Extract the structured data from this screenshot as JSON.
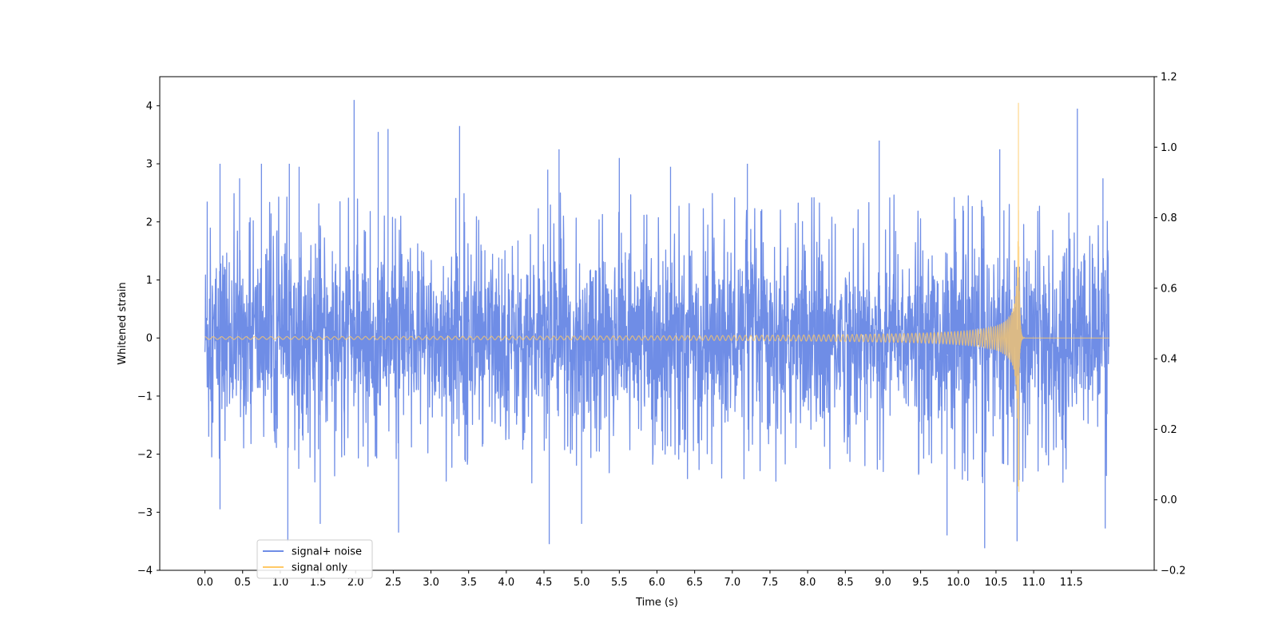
{
  "chart_data": {
    "type": "line",
    "title": "",
    "xlabel": "Time (s)",
    "ylabel": "Whitened strain",
    "xlim": [
      -0.6,
      12.6
    ],
    "ylim": [
      -4,
      4.5
    ],
    "y2lim": [
      -0.2,
      1.2
    ],
    "x_ticks": [
      0.0,
      0.5,
      1.0,
      1.5,
      2.0,
      2.5,
      3.0,
      3.5,
      4.0,
      4.5,
      5.0,
      5.5,
      6.0,
      6.5,
      7.0,
      7.5,
      8.0,
      8.5,
      9.0,
      9.5,
      10.0,
      10.5,
      11.0,
      11.5
    ],
    "x_tick_labels": [
      "0.0",
      "0.5",
      "1.0",
      "1.5",
      "2.0",
      "2.5",
      "3.0",
      "3.5",
      "4.0",
      "4.5",
      "5.0",
      "5.5",
      "6.0",
      "6.5",
      "7.0",
      "7.5",
      "8.0",
      "8.5",
      "9.0",
      "9.5",
      "10.0",
      "10.5",
      "11.0",
      "11.5"
    ],
    "y_ticks": [
      -4,
      -3,
      -2,
      -1,
      0,
      1,
      2,
      3,
      4
    ],
    "y_tick_labels": [
      "−4",
      "−3",
      "−2",
      "−1",
      "0",
      "1",
      "2",
      "3",
      "4"
    ],
    "y2_ticks": [
      -0.2,
      0.0,
      0.2,
      0.4,
      0.6,
      0.8,
      1.0,
      1.2
    ],
    "y2_tick_labels": [
      "−0.2",
      "0.0",
      "0.2",
      "0.4",
      "0.6",
      "0.8",
      "1.0",
      "1.2"
    ],
    "legend_position": "lower-left",
    "series": [
      {
        "name": "signal+ noise",
        "color": "#6f8de6",
        "axis": "left",
        "x_range": [
          0.0,
          12.0
        ],
        "envelope_typical": [
          -2.0,
          2.2
        ],
        "peaks": [
          [
            0.03,
            2.35
          ],
          [
            0.2,
            3.0
          ],
          [
            0.46,
            2.75
          ],
          [
            0.75,
            3.0
          ],
          [
            1.12,
            3.0
          ],
          [
            1.25,
            2.95
          ],
          [
            1.98,
            4.1
          ],
          [
            2.3,
            3.55
          ],
          [
            2.43,
            3.6
          ],
          [
            3.38,
            3.65
          ],
          [
            4.55,
            2.9
          ],
          [
            4.7,
            3.25
          ],
          [
            5.5,
            3.1
          ],
          [
            6.18,
            2.95
          ],
          [
            7.2,
            3.0
          ],
          [
            8.95,
            3.4
          ],
          [
            10.55,
            3.25
          ],
          [
            11.58,
            3.95
          ],
          [
            11.92,
            2.75
          ]
        ],
        "troughs": [
          [
            0.05,
            -1.7
          ],
          [
            0.2,
            -2.95
          ],
          [
            1.1,
            -3.5
          ],
          [
            1.53,
            -3.2
          ],
          [
            2.57,
            -3.35
          ],
          [
            4.57,
            -3.55
          ],
          [
            5.0,
            -3.2
          ],
          [
            9.85,
            -3.4
          ],
          [
            10.35,
            -3.62
          ],
          [
            10.78,
            -3.5
          ],
          [
            11.95,
            -3.28
          ]
        ]
      },
      {
        "name": "signal only",
        "color": "#ffc966",
        "axis": "left",
        "type": "chirp",
        "x_range": [
          0.0,
          12.0
        ],
        "merger_time": 10.8,
        "peak_amplitude": 4.05,
        "trough_amplitude": -2.65,
        "baseline": 0.0
      }
    ]
  }
}
